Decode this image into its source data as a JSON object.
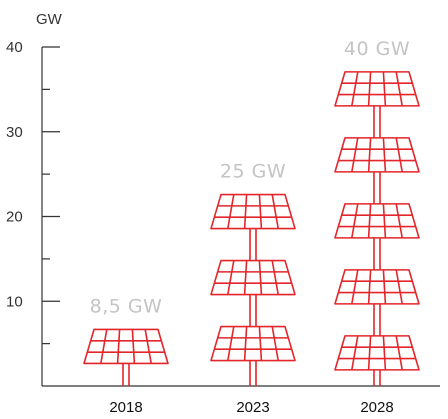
{
  "chart_data": {
    "type": "bar",
    "title": "",
    "xlabel": "",
    "ylabel": "GW",
    "ylim": [
      0,
      40
    ],
    "yticks": [
      10,
      20,
      30,
      40
    ],
    "categories": [
      "2018",
      "2023",
      "2028"
    ],
    "values": [
      8.5,
      25,
      40
    ],
    "value_labels": [
      "8,5 GW",
      "25 GW",
      "40 GW"
    ],
    "grid": false,
    "legend": "none",
    "mark_style": "stacked solar-panel pictograms",
    "colors": {
      "mark": "#e3262b",
      "value_label": "#c4c4c4",
      "axis": "#333333"
    }
  }
}
